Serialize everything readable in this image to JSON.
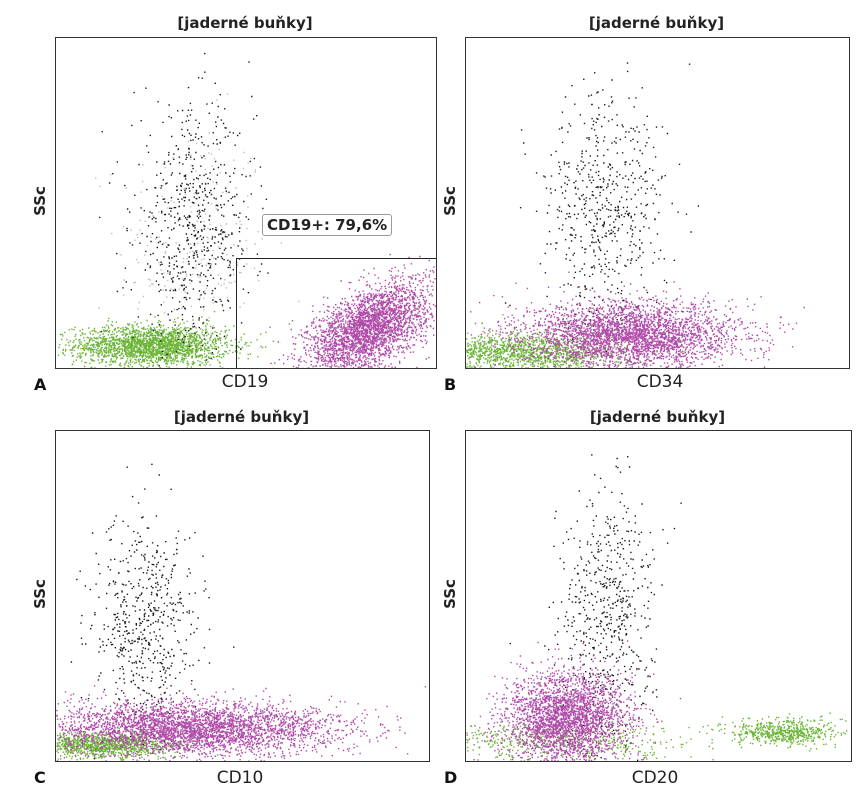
{
  "colors": {
    "ungated": "#1a1a1a",
    "cd19_positive": "#b04aa9",
    "other": "#6bb536",
    "light": "#bdbdbd"
  },
  "chart_data": [
    {
      "type": "scatter",
      "panel": "A",
      "title": "[jaderné buňky]",
      "xlabel": "CD19",
      "ylabel": "SSc",
      "gate": {
        "label": "CD19+: 79,6%"
      },
      "populations": [
        {
          "name": "",
          "color": "#6bb536",
          "cx": 0.25,
          "cy": 0.07,
          "sx": 0.1,
          "sy": 0.03,
          "n": 2200
        },
        {
          "name": "",
          "color": "#b04aa9",
          "cx": 0.82,
          "cy": 0.12,
          "sx": 0.08,
          "sy": 0.06,
          "n": 3000,
          "skew": 0.8
        },
        {
          "name": "",
          "color": "#1a1a1a",
          "cx": 0.36,
          "cy": 0.42,
          "sx": 0.08,
          "sy": 0.18,
          "n": 650
        },
        {
          "name": "",
          "color": "#bdbdbd",
          "cx": 0.36,
          "cy": 0.35,
          "sx": 0.1,
          "sy": 0.2,
          "n": 250
        }
      ]
    },
    {
      "type": "scatter",
      "panel": "B",
      "title": "[jaderné buňky]",
      "xlabel": "CD34",
      "ylabel": "SSc",
      "populations": [
        {
          "name": "",
          "color": "#6bb536",
          "cx": 0.15,
          "cy": 0.05,
          "sx": 0.13,
          "sy": 0.03,
          "n": 1400
        },
        {
          "name": "",
          "color": "#b04aa9",
          "cx": 0.43,
          "cy": 0.1,
          "sx": 0.14,
          "sy": 0.05,
          "n": 3200
        },
        {
          "name": "",
          "color": "#1a1a1a",
          "cx": 0.36,
          "cy": 0.48,
          "sx": 0.08,
          "sy": 0.18,
          "n": 600
        }
      ]
    },
    {
      "type": "scatter",
      "panel": "C",
      "title": "[jaderné buňky]",
      "xlabel": "CD10",
      "ylabel": "SSc",
      "populations": [
        {
          "name": "",
          "color": "#6bb536",
          "cx": 0.12,
          "cy": 0.05,
          "sx": 0.1,
          "sy": 0.02,
          "n": 1200
        },
        {
          "name": "",
          "color": "#b04aa9",
          "cx": 0.36,
          "cy": 0.1,
          "sx": 0.2,
          "sy": 0.04,
          "n": 3600
        },
        {
          "name": "",
          "color": "#1a1a1a",
          "cx": 0.24,
          "cy": 0.4,
          "sx": 0.07,
          "sy": 0.17,
          "n": 600
        }
      ]
    },
    {
      "type": "scatter",
      "panel": "D",
      "title": "[jaderné buňky]",
      "xlabel": "CD20",
      "ylabel": "SSc",
      "populations": [
        {
          "name": "",
          "color": "#6bb536",
          "cx": 0.82,
          "cy": 0.09,
          "sx": 0.07,
          "sy": 0.02,
          "n": 600
        },
        {
          "name": "",
          "color": "#6bb536",
          "cx": 0.24,
          "cy": 0.06,
          "sx": 0.17,
          "sy": 0.03,
          "n": 500
        },
        {
          "name": "",
          "color": "#b04aa9",
          "cx": 0.26,
          "cy": 0.13,
          "sx": 0.08,
          "sy": 0.07,
          "n": 2800
        },
        {
          "name": "",
          "color": "#1a1a1a",
          "cx": 0.36,
          "cy": 0.42,
          "sx": 0.06,
          "sy": 0.2,
          "n": 600
        }
      ]
    }
  ]
}
